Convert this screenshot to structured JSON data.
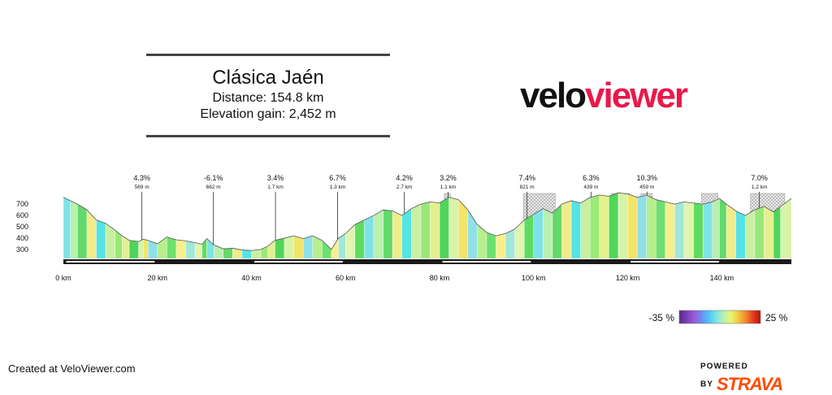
{
  "header": {
    "title": "Clásica Jaén",
    "distance": "Distance: 154.8 km",
    "elevation_gain": "Elevation gain: 2,452 m"
  },
  "logo": {
    "part1": "velo",
    "part2": "viewer"
  },
  "footer": {
    "created_at": "Created at VeloViewer.com",
    "powered_by": "POWERED BY",
    "strava": "STRAVA"
  },
  "legend": {
    "min_label": "-35 %",
    "max_label": "25 %"
  },
  "colors": {
    "brand_red": "#e8194b",
    "strava_orange": "#fc4c02"
  },
  "chart_data": {
    "type": "area",
    "xlabel": "",
    "ylabel": "",
    "xlim": [
      0,
      154.8
    ],
    "ylim": [
      220,
      780
    ],
    "x_ticks": [
      0,
      20,
      40,
      60,
      80,
      100,
      120,
      140
    ],
    "x_tick_labels": [
      "0 km",
      "20 km",
      "40 km",
      "60 km",
      "80 km",
      "100 km",
      "120 km",
      "140 km"
    ],
    "y_ticks": [
      300,
      400,
      500,
      600,
      700
    ],
    "y_tick_labels": [
      "300",
      "400",
      "500",
      "600",
      "700"
    ],
    "profile": [
      [
        0,
        760
      ],
      [
        1.5,
        730
      ],
      [
        3,
        700
      ],
      [
        5,
        650
      ],
      [
        7,
        560
      ],
      [
        9,
        530
      ],
      [
        11,
        470
      ],
      [
        12.5,
        420
      ],
      [
        14,
        380
      ],
      [
        16,
        370
      ],
      [
        17,
        390
      ],
      [
        18,
        380
      ],
      [
        20,
        350
      ],
      [
        22,
        410
      ],
      [
        24,
        385
      ],
      [
        26,
        375
      ],
      [
        28,
        360
      ],
      [
        29.5,
        345
      ],
      [
        30.5,
        395
      ],
      [
        32,
        340
      ],
      [
        34,
        305
      ],
      [
        36,
        310
      ],
      [
        38,
        295
      ],
      [
        40,
        290
      ],
      [
        42,
        300
      ],
      [
        43.5,
        330
      ],
      [
        45,
        380
      ],
      [
        47,
        400
      ],
      [
        49,
        420
      ],
      [
        51,
        395
      ],
      [
        53,
        420
      ],
      [
        55,
        380
      ],
      [
        57,
        300
      ],
      [
        58.5,
        400
      ],
      [
        60,
        440
      ],
      [
        62,
        520
      ],
      [
        64,
        560
      ],
      [
        66,
        600
      ],
      [
        68,
        650
      ],
      [
        70,
        640
      ],
      [
        72,
        600
      ],
      [
        74,
        660
      ],
      [
        76,
        700
      ],
      [
        78,
        720
      ],
      [
        80,
        710
      ],
      [
        82,
        760
      ],
      [
        84,
        740
      ],
      [
        86,
        650
      ],
      [
        88,
        520
      ],
      [
        90,
        450
      ],
      [
        92,
        420
      ],
      [
        94,
        440
      ],
      [
        96,
        480
      ],
      [
        98,
        560
      ],
      [
        100,
        610
      ],
      [
        102,
        660
      ],
      [
        104,
        620
      ],
      [
        106,
        700
      ],
      [
        108,
        730
      ],
      [
        110,
        710
      ],
      [
        112,
        760
      ],
      [
        114,
        780
      ],
      [
        116,
        770
      ],
      [
        118,
        800
      ],
      [
        120,
        790
      ],
      [
        122,
        760
      ],
      [
        124,
        780
      ],
      [
        126,
        740
      ],
      [
        128,
        720
      ],
      [
        130,
        700
      ],
      [
        132,
        720
      ],
      [
        134,
        710
      ],
      [
        136,
        700
      ],
      [
        138,
        720
      ],
      [
        139.5,
        750
      ],
      [
        141,
        700
      ],
      [
        143,
        640
      ],
      [
        145,
        600
      ],
      [
        147,
        650
      ],
      [
        149,
        680
      ],
      [
        151,
        630
      ],
      [
        152.5,
        680
      ],
      [
        154.8,
        750
      ]
    ],
    "segment_colors": [
      "#7de3e6",
      "#b9f0b0",
      "#62d96a",
      "#f0ec8a",
      "#55e3e6",
      "#c8f0a0",
      "#9be878",
      "#e4f08c",
      "#4fd65a",
      "#d8f3a8",
      "#f2e46a",
      "#8fe0e8",
      "#b8ee8e",
      "#6ee06e",
      "#f6f08c",
      "#a0e8d8",
      "#dff5b0",
      "#5fdc5f"
    ],
    "climbs": [
      {
        "km": 16.7,
        "gradient": "4.3%",
        "length": "569 m"
      },
      {
        "km": 31.9,
        "gradient": "-6.1%",
        "length": "662 m"
      },
      {
        "km": 45.1,
        "gradient": "3.4%",
        "length": "1.7 km"
      },
      {
        "km": 58.3,
        "gradient": "6.7%",
        "length": "1.3 km"
      },
      {
        "km": 72.5,
        "gradient": "4.2%",
        "length": "2.7 km"
      },
      {
        "km": 81.8,
        "gradient": "3.2%",
        "length": "1.1 km"
      },
      {
        "km": 98.6,
        "gradient": "7.4%",
        "length": "821 m"
      },
      {
        "km": 112.2,
        "gradient": "6.3%",
        "length": "439 m"
      },
      {
        "km": 124.1,
        "gradient": "10.3%",
        "length": "459 m"
      },
      {
        "km": 148.0,
        "gradient": "7.0%",
        "length": "1.2 km"
      }
    ],
    "hatched_sections": [
      [
        81.0,
        82.3
      ],
      [
        97.8,
        104.6
      ],
      [
        116.6,
        120.4
      ],
      [
        122.8,
        125.2
      ],
      [
        135.7,
        139.2
      ],
      [
        146.1,
        153.4
      ]
    ],
    "gradient_legend": {
      "min": -35,
      "max": 25,
      "stops": [
        "#5b2a86",
        "#7b3fb6",
        "#9b59d6",
        "#6b8cf0",
        "#4fc3f7",
        "#7de3e6",
        "#b9f0b0",
        "#e9f56e",
        "#f2c744",
        "#f08a2e",
        "#e33b1e",
        "#b41212"
      ]
    }
  }
}
